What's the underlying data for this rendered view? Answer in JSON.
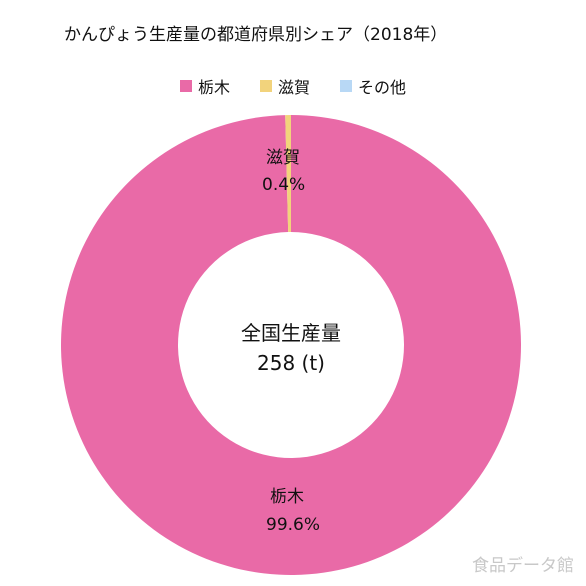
{
  "chart_data": {
    "type": "pie",
    "title": "かんぴょう生産量の都道府県別シェア（2018年）",
    "donut": true,
    "center_label": {
      "line1": "全国生産量",
      "line2": "258 (t)"
    },
    "legend_position": "top",
    "legend": [
      {
        "name": "栃木",
        "color": "#e96aa7"
      },
      {
        "name": "滋賀",
        "color": "#f2d37c"
      },
      {
        "name": "その他",
        "color": "#b8d8f5"
      }
    ],
    "slices": [
      {
        "name": "栃木",
        "value": 99.6,
        "label": "99.6%",
        "color": "#e96aa7"
      },
      {
        "name": "滋賀",
        "value": 0.4,
        "label": "0.4%",
        "color": "#f2d37c"
      },
      {
        "name": "その他",
        "value": 0.0,
        "label": "",
        "color": "#b8d8f5"
      }
    ]
  },
  "watermark": "食品データ館"
}
